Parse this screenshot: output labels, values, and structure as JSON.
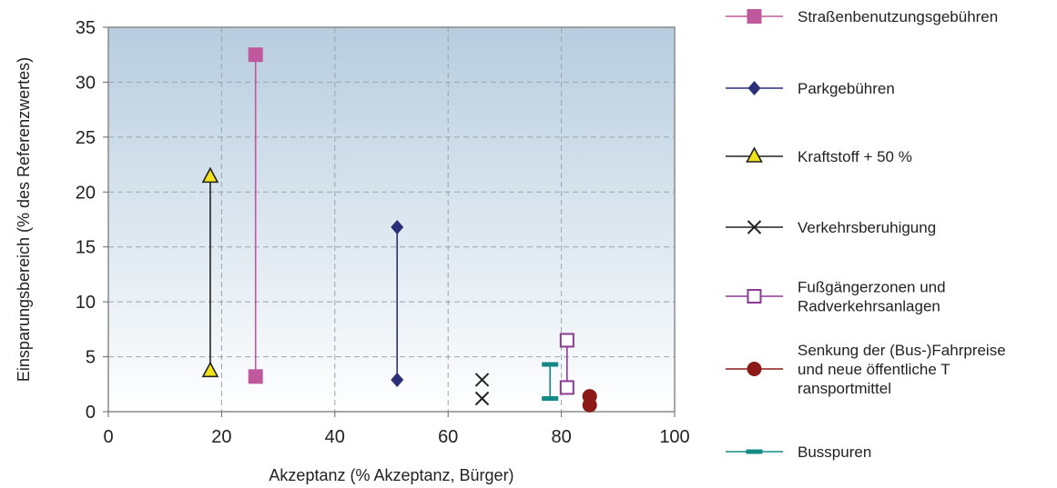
{
  "chart_data": {
    "type": "scatter",
    "xlabel": "Akzeptanz (% Akzeptanz, Bürger)",
    "ylabel": "Einsparungsbereich (% des Referenzwertes)",
    "xlim": [
      0,
      100
    ],
    "ylim": [
      0,
      35
    ],
    "xticks": [
      0,
      20,
      40,
      60,
      80,
      100
    ],
    "yticks": [
      0,
      5,
      10,
      15,
      20,
      25,
      30,
      35
    ],
    "grid": true,
    "legend_position": "right",
    "series": [
      {
        "name": "Straßenbenutzungsgebühren",
        "marker": "square-filled",
        "color": "#c0589e",
        "points": [
          {
            "x": 26,
            "y": 32.5
          },
          {
            "x": 26,
            "y": 3.2
          }
        ]
      },
      {
        "name": "Parkgebühren",
        "marker": "diamond-filled",
        "color": "#2b2f78",
        "points": [
          {
            "x": 51,
            "y": 16.8
          },
          {
            "x": 51,
            "y": 2.9
          }
        ]
      },
      {
        "name": "Kraftstoff + 50 %",
        "marker": "triangle",
        "color": "#222222",
        "fill": "#f2e21a",
        "points": [
          {
            "x": 18,
            "y": 21.4
          },
          {
            "x": 18,
            "y": 3.7
          }
        ]
      },
      {
        "name": "Verkehrsberuhigung",
        "marker": "x",
        "color": "#222222",
        "points": [
          {
            "x": 66,
            "y": 2.9
          },
          {
            "x": 66,
            "y": 1.2
          }
        ]
      },
      {
        "name": [
          "Fußgängerzonen und",
          "Radverkehrsanlagen"
        ],
        "marker": "square-open",
        "color": "#8a3a92",
        "points": [
          {
            "x": 81,
            "y": 6.5
          },
          {
            "x": 81,
            "y": 2.2
          }
        ]
      },
      {
        "name": [
          "Senkung der (Bus-)Fahrpreise",
          "und neue öffentliche T",
          "ransportmittel"
        ],
        "marker": "circle-filled",
        "color": "#8b1a16",
        "points": [
          {
            "x": 85,
            "y": 1.4
          },
          {
            "x": 85,
            "y": 0.6
          }
        ]
      },
      {
        "name": "Busspuren",
        "marker": "bar",
        "color": "#138a86",
        "points": [
          {
            "x": 78,
            "y": 4.3
          },
          {
            "x": 78,
            "y": 1.2
          }
        ]
      }
    ]
  }
}
